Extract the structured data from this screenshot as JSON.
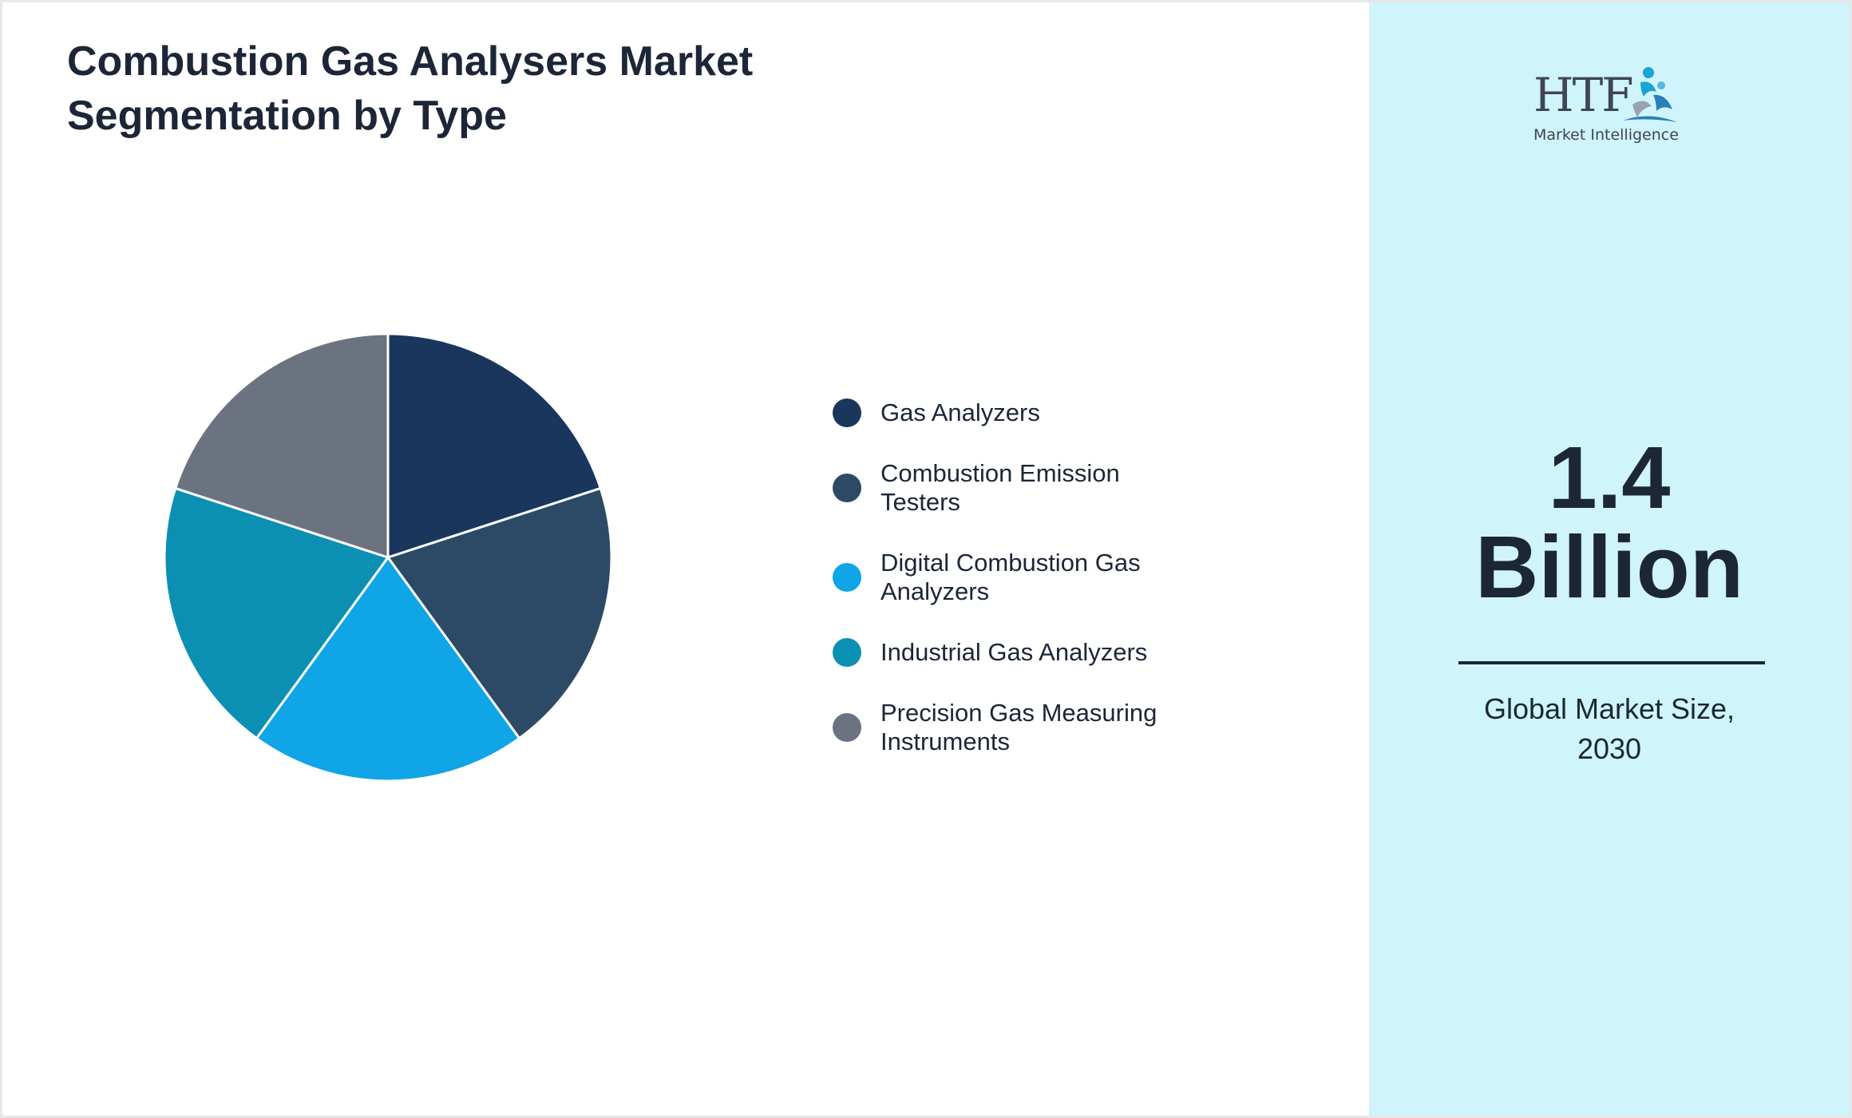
{
  "chart_data": {
    "type": "pie",
    "title": "Combustion Gas Analysers Market Segmentation by Type",
    "categories": [
      "Gas Analyzers",
      "Combustion Emission Testers",
      "Digital Combustion Gas Analyzers",
      "Industrial Gas Analyzers",
      "Precision Gas Measuring Instruments"
    ],
    "values": [
      20,
      20,
      20,
      20,
      20
    ],
    "colors": [
      "#1b365d",
      "#2c4a66",
      "#0fa5e6",
      "#0b90b3",
      "#6b7280"
    ],
    "legend_position": "right"
  },
  "logo": {
    "text": "HTF",
    "subtitle": "Market Intelligence"
  },
  "highlight": {
    "value": "1.4",
    "unit": "Billion",
    "caption": "Global Market Size, 2030"
  }
}
